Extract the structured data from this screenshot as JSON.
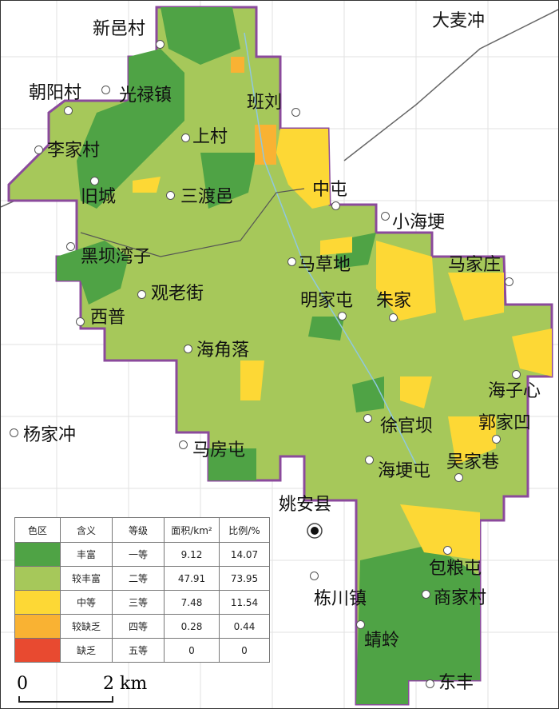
{
  "places": [
    {
      "name": "新邑村"
    },
    {
      "name": "大麦冲"
    },
    {
      "name": "朝阳村"
    },
    {
      "name": "光禄镇"
    },
    {
      "name": "班刘"
    },
    {
      "name": "李家村"
    },
    {
      "name": "上村"
    },
    {
      "name": "旧城"
    },
    {
      "name": "三渡邑"
    },
    {
      "name": "中屯"
    },
    {
      "name": "小海埂"
    },
    {
      "name": "黑坝湾子"
    },
    {
      "name": "马草地"
    },
    {
      "name": "马家庄"
    },
    {
      "name": "观老街"
    },
    {
      "name": "明家屯"
    },
    {
      "name": "朱家"
    },
    {
      "name": "西普"
    },
    {
      "name": "海角落"
    },
    {
      "name": "海子心"
    },
    {
      "name": "杨家冲"
    },
    {
      "name": "徐官坝"
    },
    {
      "name": "郭家凹"
    },
    {
      "name": "马房屯"
    },
    {
      "name": "海埂屯"
    },
    {
      "name": "吴家巷"
    },
    {
      "name": "姚安县"
    },
    {
      "name": "包粮屯"
    },
    {
      "name": "栋川镇"
    },
    {
      "name": "商家村"
    },
    {
      "name": "蜻蛉"
    },
    {
      "name": "东丰"
    }
  ],
  "legend": {
    "headers": [
      "色区",
      "含义",
      "等级",
      "面积/km²",
      "比例/%"
    ],
    "rows": [
      {
        "color": "#4fa345",
        "meaning": "丰富",
        "grade": "一等",
        "area": "9.12",
        "ratio": "14.07"
      },
      {
        "color": "#a6c85a",
        "meaning": "较丰富",
        "grade": "二等",
        "area": "47.91",
        "ratio": "73.95"
      },
      {
        "color": "#fdd835",
        "meaning": "中等",
        "grade": "三等",
        "area": "7.48",
        "ratio": "11.54"
      },
      {
        "color": "#f9b233",
        "meaning": "较缺乏",
        "grade": "四等",
        "area": "0.28",
        "ratio": "0.44"
      },
      {
        "color": "#e84a30",
        "meaning": "缺乏",
        "grade": "五等",
        "area": "0",
        "ratio": "0"
      }
    ]
  },
  "scale": {
    "zero": "0",
    "value": "2 km"
  },
  "colors": {
    "boundary": "#8b4a9c",
    "grid": "#d8d8d8"
  }
}
